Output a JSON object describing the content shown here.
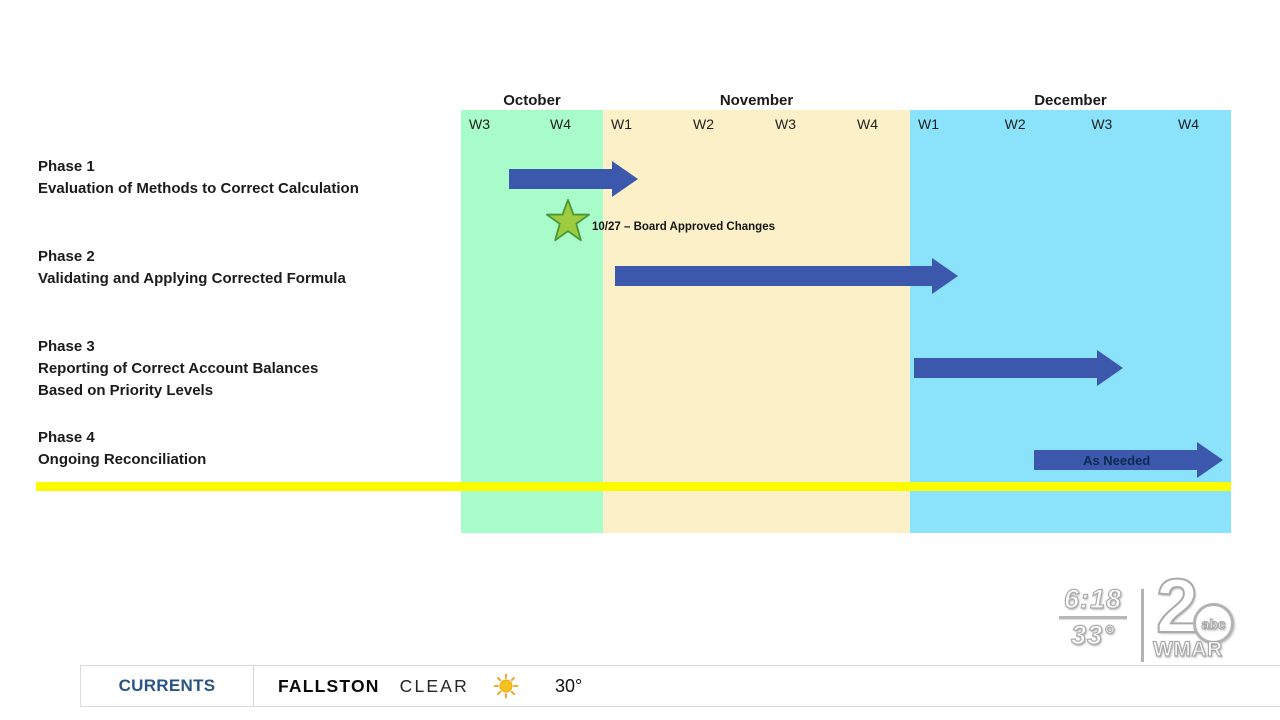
{
  "chart_data": {
    "type": "bar",
    "variant": "gantt-timeline",
    "week_units": "0 = start of October W3, 10 = end of December W4",
    "months": [
      {
        "name": "October",
        "weeks": [
          "W3",
          "W4"
        ]
      },
      {
        "name": "November",
        "weeks": [
          "W1",
          "W2",
          "W3",
          "W4"
        ]
      },
      {
        "name": "December",
        "weeks": [
          "W1",
          "W2",
          "W3",
          "W4"
        ]
      }
    ],
    "tasks": [
      {
        "phase": "Phase 1",
        "description": [
          "Evaluation of Methods to Correct Calculation"
        ],
        "start": 0.68,
        "end": 2.45,
        "label": ""
      },
      {
        "phase": "Phase 2",
        "description": [
          "Validating and Applying Corrected Formula"
        ],
        "start": 2.15,
        "end": 6.6,
        "label": ""
      },
      {
        "phase": "Phase 3",
        "description": [
          "Reporting of Correct Account Balances",
          "Based on Priority Levels"
        ],
        "start": 6.05,
        "end": 8.65,
        "label": ""
      },
      {
        "phase": "Phase 4",
        "description": [
          "Ongoing Reconciliation"
        ],
        "start": 7.55,
        "end": 9.9,
        "label": "As Needed"
      }
    ],
    "milestone": {
      "week": 1.5,
      "date": "10/27",
      "label": "10/27 – Board Approved Changes"
    },
    "colors": {
      "october_band": "#a7fcc9",
      "november_band": "#fbf0c8",
      "december_band": "#8ae2fb",
      "arrow_blue": "#3c58ac",
      "star_fill": "#9ecb3f",
      "star_outline": "#499a36",
      "highlight_line": "#fbfb00"
    },
    "legend": "none",
    "grid": "off"
  },
  "broadcast": {
    "clock": {
      "time": "6:18",
      "temperature": "33°"
    },
    "station": {
      "channel": "2",
      "network": "abc",
      "callsign": "WMAR"
    },
    "ticker": {
      "section": "CURRENTS",
      "location": "FALLSTON",
      "condition": "CLEAR",
      "temperature": "30°",
      "icon": "sun-icon"
    }
  }
}
